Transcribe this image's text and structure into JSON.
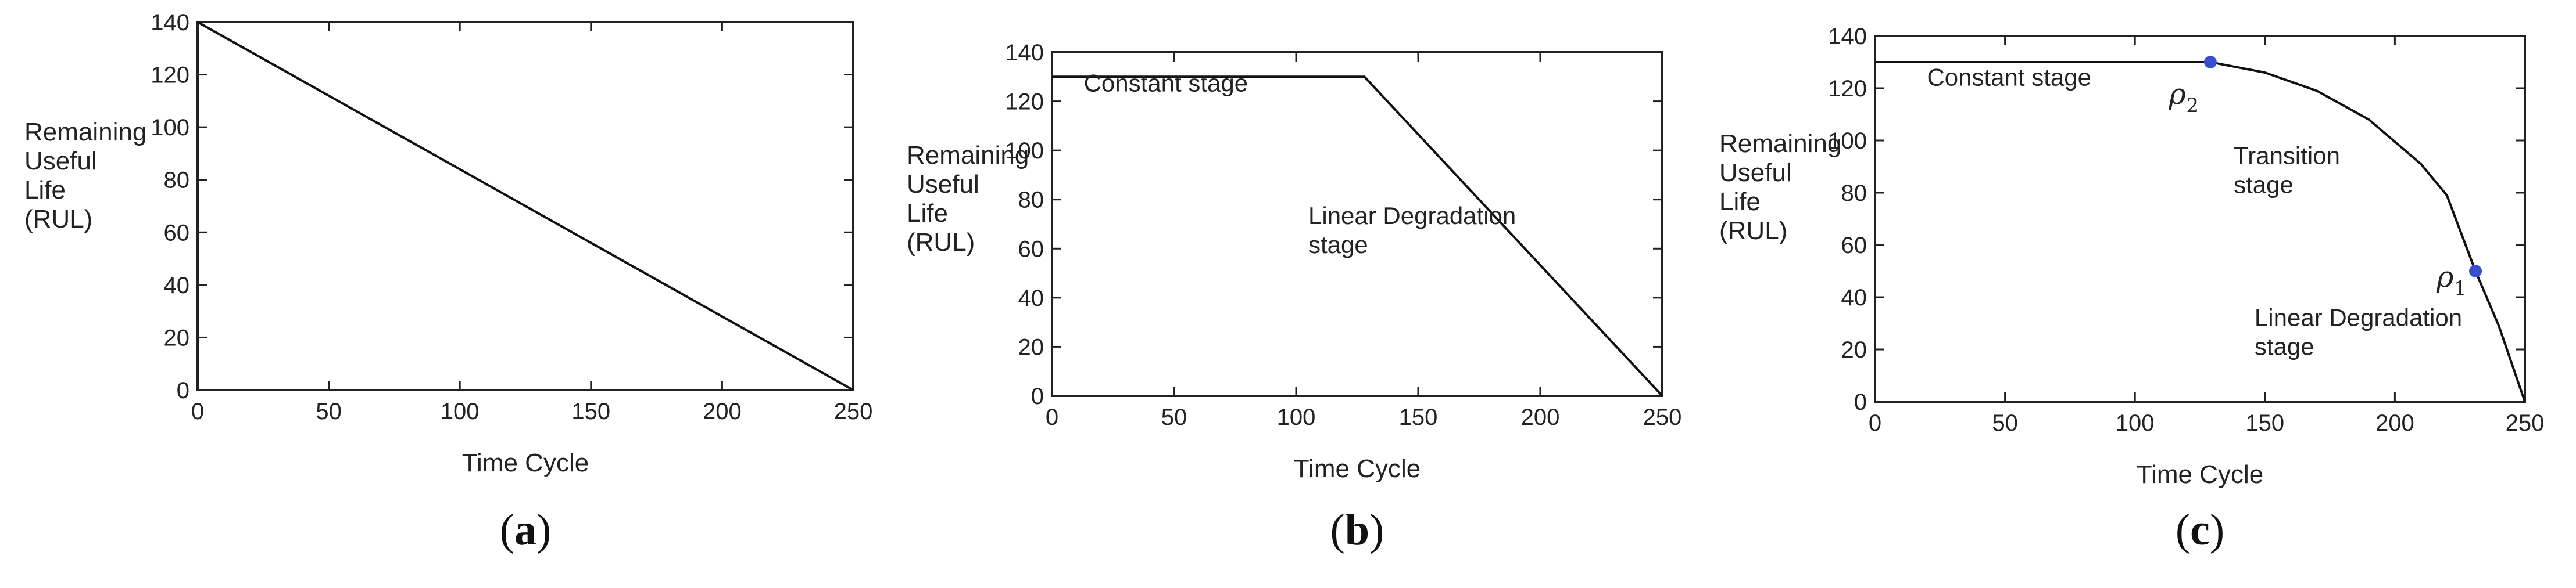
{
  "chart_data": [
    {
      "type": "line",
      "panel_label": "a",
      "xlabel": "Time Cycle",
      "ylabel": [
        "Remaining",
        "Useful",
        "Life",
        "(RUL)"
      ],
      "xlim": [
        0,
        250
      ],
      "ylim": [
        0,
        140
      ],
      "xticks": [
        0,
        50,
        100,
        150,
        200,
        250
      ],
      "yticks": [
        0,
        20,
        40,
        60,
        80,
        100,
        120,
        140
      ],
      "series": [
        {
          "name": "RUL",
          "x": [
            0,
            250
          ],
          "y": [
            140,
            0
          ]
        }
      ],
      "annotations": [],
      "points": []
    },
    {
      "type": "line",
      "panel_label": "b",
      "xlabel": "Time Cycle",
      "ylabel": [
        "Remaining",
        "Useful",
        "Life",
        "(RUL)"
      ],
      "xlim": [
        0,
        250
      ],
      "ylim": [
        0,
        140
      ],
      "xticks": [
        0,
        50,
        100,
        150,
        200,
        250
      ],
      "yticks": [
        0,
        20,
        40,
        60,
        80,
        100,
        120,
        140
      ],
      "series": [
        {
          "name": "RUL",
          "x": [
            0,
            128,
            250
          ],
          "y": [
            130,
            130,
            0
          ]
        }
      ],
      "annotations": [
        {
          "lines": [
            "Constant stage"
          ],
          "x": 13,
          "y": 124
        },
        {
          "lines": [
            "Linear Degradation",
            "stage"
          ],
          "x": 105,
          "y": 70
        }
      ],
      "points": []
    },
    {
      "type": "line",
      "panel_label": "c",
      "xlabel": "Time Cycle",
      "ylabel": [
        "Remaining",
        "Useful",
        "Life",
        "(RUL)"
      ],
      "xlim": [
        0,
        250
      ],
      "ylim": [
        0,
        140
      ],
      "xticks": [
        0,
        50,
        100,
        150,
        200,
        250
      ],
      "yticks": [
        0,
        20,
        40,
        60,
        80,
        100,
        120,
        140
      ],
      "series": [
        {
          "name": "RUL",
          "x": [
            0,
            129,
            150,
            170,
            190,
            210,
            220,
            231,
            240,
            250
          ],
          "y": [
            130,
            130,
            126,
            119,
            108,
            91,
            79,
            50,
            29,
            0
          ]
        }
      ],
      "annotations": [
        {
          "lines": [
            "Constant stage"
          ],
          "x": 20,
          "y": 121
        },
        {
          "lines": [
            "Transition",
            "stage"
          ],
          "x": 138,
          "y": 91
        },
        {
          "lines": [
            "Linear Degradation",
            "stage"
          ],
          "x": 146,
          "y": 29
        }
      ],
      "points": [
        {
          "label": "ρ",
          "sub": "2",
          "x": 129,
          "y": 130,
          "color": "#3a4fcf",
          "label_x": 113,
          "label_y": 114
        },
        {
          "label": "ρ",
          "sub": "1",
          "x": 231,
          "y": 50,
          "color": "#3a4fcf",
          "label_x": 216,
          "label_y": 44
        }
      ]
    }
  ]
}
